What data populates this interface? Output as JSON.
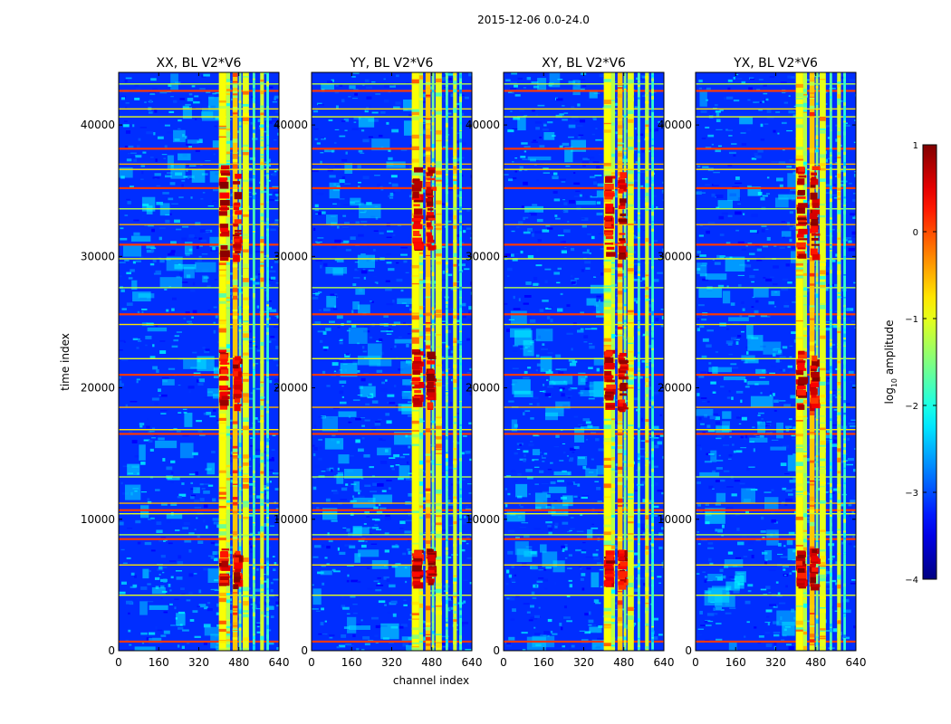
{
  "figure": {
    "suptitle": "2015-12-06 0.0-24.0"
  },
  "chart_data": {
    "type": "heatmap",
    "xlabel": "channel index",
    "ylabel": "time index",
    "xlim": [
      0,
      640
    ],
    "ylim": [
      0,
      44000
    ],
    "xticks": [
      0,
      160,
      320,
      480,
      640
    ],
    "yticks": [
      0,
      10000,
      20000,
      30000,
      40000
    ],
    "panels": [
      {
        "title": "XX, BL V2*V6"
      },
      {
        "title": "YY, BL V2*V6"
      },
      {
        "title": "XY, BL V2*V6"
      },
      {
        "title": "YX, BL V2*V6"
      }
    ],
    "colorbar": {
      "label": "log",
      "label_sub": "10",
      "label_rest": " amplitude",
      "range": [
        -4,
        1
      ],
      "ticks": [
        "1",
        "0",
        "−1",
        "−2",
        "−3",
        "−4"
      ],
      "tick_values": [
        1,
        0,
        -1,
        -2,
        -3,
        -4
      ],
      "colormap": "jet"
    },
    "rfi_channel_bands": [
      [
        400,
        430
      ],
      [
        430,
        445
      ],
      [
        455,
        475
      ],
      [
        480,
        490
      ],
      [
        495,
        520
      ],
      [
        535,
        545
      ],
      [
        565,
        580
      ],
      [
        590,
        600
      ]
    ],
    "hot_channel_bands": [
      [
        400,
        440
      ],
      [
        455,
        490
      ]
    ],
    "hot_time_bands": [
      [
        5000,
        7800
      ],
      [
        18500,
        23000
      ],
      [
        30000,
        37000
      ]
    ],
    "rfi_time_lines": [
      700,
      4200,
      6500,
      8500,
      8800,
      10400,
      10700,
      11200,
      13200,
      16500,
      16800,
      18500,
      21000,
      22200,
      24800,
      25600,
      27600,
      29800,
      30900,
      32400,
      33600,
      35200,
      36600,
      37000,
      38200,
      40600,
      41200,
      42600,
      43100
    ]
  }
}
